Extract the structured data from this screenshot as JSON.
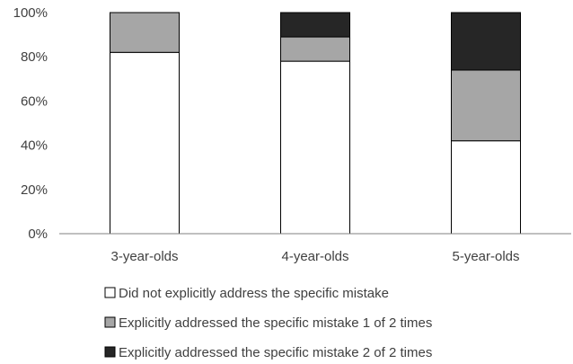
{
  "chart_data": {
    "type": "bar",
    "stacked": true,
    "categories": [
      "3-year-olds",
      "4-year-olds",
      "5-year-olds"
    ],
    "series": [
      {
        "name": "Did not explicitly address the specific mistake",
        "color": "#ffffff",
        "values": [
          82,
          78,
          42
        ]
      },
      {
        "name": "Explicitly addressed the specific mistake 1 of 2 times",
        "color": "#a6a6a6",
        "values": [
          18,
          11,
          32
        ]
      },
      {
        "name": "Explicitly addressed the specific mistake 2 of 2 times",
        "color": "#262626",
        "values": [
          0,
          11,
          26
        ]
      }
    ],
    "y_ticks": [
      "0%",
      "20%",
      "40%",
      "60%",
      "80%",
      "100%"
    ],
    "ylim": [
      0,
      100
    ],
    "title": "",
    "xlabel": "",
    "ylabel": "",
    "grid": false,
    "legend_position": "bottom"
  }
}
